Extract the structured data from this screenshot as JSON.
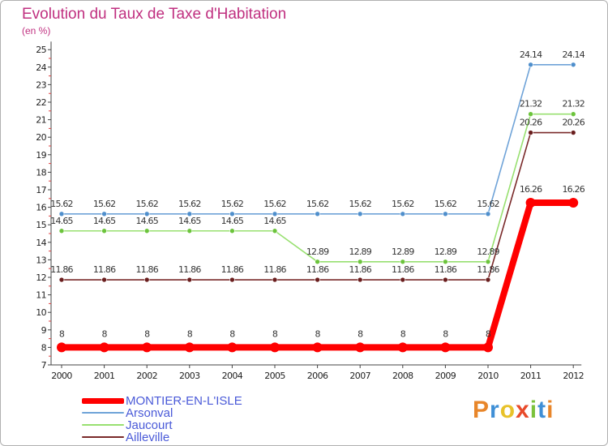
{
  "chart_data": {
    "type": "line",
    "title": "Evolution du Taux de Taxe d'Habitation",
    "unit": "(en %)",
    "xlabel": "",
    "ylabel": "",
    "x": [
      "2000",
      "2001",
      "2002",
      "2003",
      "2004",
      "2005",
      "2006",
      "2007",
      "2008",
      "2009",
      "2010",
      "2011",
      "2012"
    ],
    "ylim": [
      7,
      25
    ],
    "yticks": [
      7,
      8,
      9,
      10,
      11,
      12,
      13,
      14,
      15,
      16,
      17,
      18,
      19,
      20,
      21,
      22,
      23,
      24,
      25
    ],
    "grid": false,
    "legend_position": "bottom-left",
    "series": [
      {
        "name": "MONTIER-EN-L'ISLE",
        "color": "#ff0000",
        "point_color": "#ff0000",
        "values": [
          8,
          8,
          8,
          8,
          8,
          8,
          8,
          8,
          8,
          8,
          8,
          16.26,
          16.26
        ],
        "labels": [
          "8",
          "8",
          "8",
          "8",
          "8",
          "8",
          "8",
          "8",
          "8",
          "8",
          "8",
          "16.26",
          "16.26"
        ]
      },
      {
        "name": "Arsonval",
        "color": "#6fa3d8",
        "point_color": "#4f8fcc",
        "values": [
          15.62,
          15.62,
          15.62,
          15.62,
          15.62,
          15.62,
          15.62,
          15.62,
          15.62,
          15.62,
          15.62,
          24.14,
          24.14
        ],
        "labels": [
          "15.62",
          "15.62",
          "15.62",
          "15.62",
          "15.62",
          "15.62",
          "15.62",
          "15.62",
          "15.62",
          "15.62",
          "15.62",
          "24.14",
          "24.14"
        ]
      },
      {
        "name": "Jaucourt",
        "color": "#98e070",
        "point_color": "#6cc43c",
        "values": [
          14.65,
          14.65,
          14.65,
          14.65,
          14.65,
          14.65,
          12.89,
          12.89,
          12.89,
          12.89,
          12.89,
          21.32,
          21.32
        ],
        "labels": [
          "14.65",
          "14.65",
          "14.65",
          "14.65",
          "14.65",
          "14.65",
          "12.89",
          "12.89",
          "12.89",
          "12.89",
          "12.89",
          "21.32",
          "21.32"
        ]
      },
      {
        "name": "Ailleville",
        "color": "#7a2a2a",
        "point_color": "#6a1e1e",
        "values": [
          11.86,
          11.86,
          11.86,
          11.86,
          11.86,
          11.86,
          11.86,
          11.86,
          11.86,
          11.86,
          11.86,
          20.26,
          20.26
        ],
        "labels": [
          "11.86",
          "11.86",
          "11.86",
          "11.86",
          "11.86",
          "11.86",
          "11.86",
          "11.86",
          "11.86",
          "11.86",
          "11.86",
          "20.26",
          "20.26"
        ]
      }
    ]
  },
  "logo_text": "Proxiti",
  "logo_colors": [
    "#e8862a",
    "#3f8fd6",
    "#e8c22a",
    "#e84a2a",
    "#7bc23c",
    "#3f8fd6",
    "#e8862a"
  ]
}
